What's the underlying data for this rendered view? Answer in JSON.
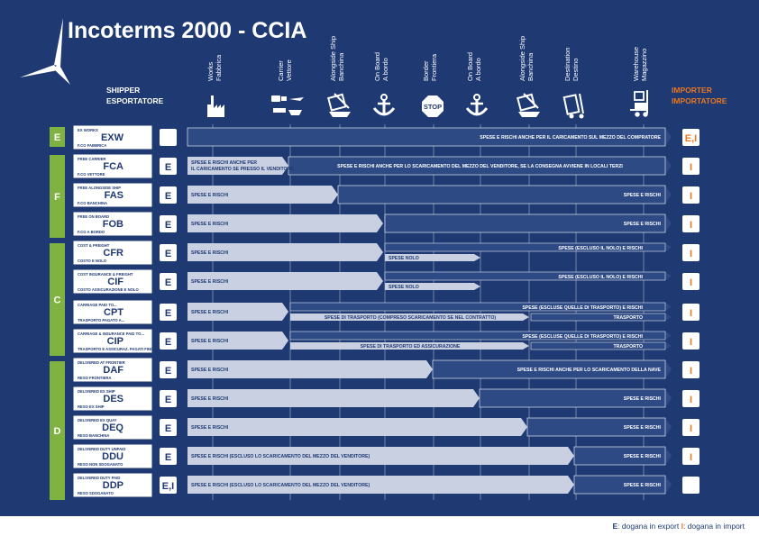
{
  "title": "Incoterms 2000 - CCIA",
  "colors": {
    "background": "#1F3A73",
    "left_group": "#7FB241",
    "importer": "#E87722",
    "seller_arrow": "#C9D0E2",
    "buyer_arrow": "#2E4A85",
    "white": "#FFFFFF"
  },
  "header": {
    "shipper": [
      "SHIPPER",
      "ESPORTATORE"
    ],
    "importer": [
      "IMPORTER",
      "IMPORTATORE"
    ],
    "columns": [
      {
        "label": [
          "Works",
          "Fabbrica"
        ],
        "icon": "factory-icon"
      },
      {
        "label": [
          "Carrier",
          "Vettore"
        ],
        "icon": "carrier-icon"
      },
      {
        "label": [
          "Alongside Ship",
          "Banchina"
        ],
        "icon": "crane-icon"
      },
      {
        "label": [
          "On Board",
          "A bordo"
        ],
        "icon": "anchor-icon"
      },
      {
        "label": [
          "Border",
          "Frontiera"
        ],
        "icon": "stop-icon"
      },
      {
        "label": [
          "On Board",
          "A bordo"
        ],
        "icon": "anchor-icon"
      },
      {
        "label": [
          "Alongside Ship",
          "Banchina"
        ],
        "icon": "crane-icon"
      },
      {
        "label": [
          "Destination",
          "Destino"
        ],
        "icon": "trolley-icon"
      },
      {
        "label": [
          "Warehouse",
          "Magazzino"
        ],
        "icon": "forklift-icon"
      }
    ]
  },
  "groups": [
    {
      "label": "E"
    },
    {
      "label": "F"
    },
    {
      "label": "C"
    },
    {
      "label": "D"
    }
  ],
  "rows": [
    {
      "top": "EX WORKS",
      "code": "EXW",
      "bottom": "F.CO FABBRICA",
      "export": "",
      "import": "E,I",
      "lines": [
        {
          "kind": "buyer",
          "text": "SPESE E RISCHI ANCHE PER IL CARICAMENTO SUL MEZZO DEL COMPRATORE"
        }
      ]
    },
    {
      "top": "FREE CARRIER",
      "code": "FCA",
      "bottom": "F.CO VETTORE",
      "export": "E",
      "import": "I",
      "lines": [
        {
          "kind": "seller",
          "text": "SPESE E RISCHI ANCHE PER",
          "text2": "IL CARICAMENTO SE PRESSO IL VENDITORE"
        },
        {
          "kind": "buyer",
          "text": "SPESE E RISCHI ANCHE PER LO SCARICAMENTO DEL MEZZO DEL VENDITORE, SE LA CONSEGNA AVVIENE IN LOCALI TERZI"
        }
      ]
    },
    {
      "top": "FREE ALONGSIDE SHIP",
      "code": "FAS",
      "bottom": "F.CO BANCHINA",
      "export": "E",
      "import": "I",
      "lines": [
        {
          "kind": "seller",
          "text": "SPESE E RISCHI"
        },
        {
          "kind": "buyer",
          "text": "SPESE E RISCHI"
        }
      ]
    },
    {
      "top": "FREE ON BOARD",
      "code": "FOB",
      "bottom": "F.CO A BORDO",
      "export": "E",
      "import": "I",
      "lines": [
        {
          "kind": "seller",
          "text": "SPESE E RISCHI"
        },
        {
          "kind": "buyer",
          "text": "SPESE E RISCHI"
        }
      ]
    },
    {
      "top": "COST & FREIGHT",
      "code": "CFR",
      "bottom": "COSTO E NOLO",
      "export": "E",
      "import": "I",
      "lines": [
        {
          "kind": "seller",
          "text": "SPESE E RISCHI"
        },
        {
          "kind": "buyer",
          "text": "SPESE (ESCLUSO IL NOLO) E RISCHI"
        },
        {
          "kind": "seller",
          "text": "SPESE NOLO"
        }
      ]
    },
    {
      "top": "COST INSURANCE & FREIGHT",
      "code": "CIF",
      "bottom": "COSTO ASSICURAZIONE E NOLO",
      "export": "E",
      "import": "I",
      "lines": [
        {
          "kind": "seller",
          "text": "SPESE E RISCHI"
        },
        {
          "kind": "buyer",
          "text": "SPESE (ESCLUSO IL NOLO) E RISCHI"
        },
        {
          "kind": "seller",
          "text": "SPESE NOLO"
        }
      ]
    },
    {
      "top": "CARRIAGE PAID TO...",
      "code": "CPT",
      "bottom": "TRASPORTO PAGATO A...",
      "export": "E",
      "import": "I",
      "lines": [
        {
          "kind": "seller",
          "text": "SPESE E RISCHI"
        },
        {
          "kind": "buyer",
          "text": "SPESE (ESCLUSE QUELLE DI TRASPORTO) E RISCHI"
        },
        {
          "kind": "seller",
          "text": "SPESE DI TRASPORTO (COMPRESO SCARICAMENTO SE NEL CONTRATTO)"
        },
        {
          "kind": "buyer",
          "text": "TRASPORTO"
        }
      ]
    },
    {
      "top": "CARRIAGE & INSURANCE PAID TO...",
      "code": "CIP",
      "bottom": "TRASPORTO E ASSICURAZ. PAGATI FINO A...",
      "export": "E",
      "import": "I",
      "lines": [
        {
          "kind": "seller",
          "text": "SPESE E RISCHI"
        },
        {
          "kind": "buyer",
          "text": "SPESE (ESCLUSE QUELLE DI TRASPORTO) E RISCHI"
        },
        {
          "kind": "seller",
          "text": "SPESE DI TRASPORTO ED ASSICURAZIONE"
        },
        {
          "kind": "buyer",
          "text": "TRASPORTO"
        }
      ]
    },
    {
      "top": "DELIVERED AT FRONTIER",
      "code": "DAF",
      "bottom": "RESO FRONTIERA",
      "export": "E",
      "import": "I",
      "lines": [
        {
          "kind": "seller",
          "text": "SPESE E RISCHI"
        },
        {
          "kind": "buyer",
          "text": "SPESE E RISCHI ANCHE PER LO SCARICAMENTO DELLA NAVE"
        }
      ]
    },
    {
      "top": "DELIVERED EX SHIP",
      "code": "DES",
      "bottom": "RESO EX SHIP",
      "export": "E",
      "import": "I",
      "lines": [
        {
          "kind": "seller",
          "text": "SPESE E RISCHI"
        },
        {
          "kind": "buyer",
          "text": "SPESE E RISCHI"
        }
      ]
    },
    {
      "top": "DELIVERED EX QUAY",
      "code": "DEQ",
      "bottom": "RESO BANCHINA",
      "export": "E",
      "import": "I",
      "lines": [
        {
          "kind": "seller",
          "text": "SPESE E RISCHI"
        },
        {
          "kind": "buyer",
          "text": "SPESE E RISCHI"
        }
      ]
    },
    {
      "top": "DELIVERED DUTY UNPAID",
      "code": "DDU",
      "bottom": "RESO NON SDOGANATO",
      "export": "E",
      "import": "I",
      "lines": [
        {
          "kind": "seller",
          "text": "SPESE E RISCHI (ESCLUSO LO SCARICAMENTO DEL MEZZO DEL VENDITORE)"
        },
        {
          "kind": "buyer",
          "text": "SPESE E RISCHI"
        }
      ]
    },
    {
      "top": "DELIVERED DUTY PAID",
      "code": "DDP",
      "bottom": "RESO SDOGANATO",
      "export": "E,I",
      "import": "",
      "lines": [
        {
          "kind": "seller",
          "text": "SPESE E RISCHI (ESCLUSO LO SCARICAMENTO DEL MEZZO DEL VENDITORE)"
        },
        {
          "kind": "buyer",
          "text": "SPESE E RISCHI"
        }
      ]
    }
  ],
  "footer": {
    "e_letter": "E",
    "e_text": ": dogana in export",
    "i_letter": "I",
    "i_text": ": dogana in import"
  }
}
